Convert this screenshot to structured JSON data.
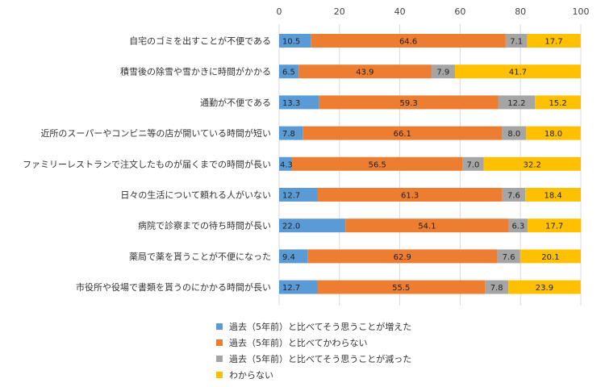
{
  "chart_data": {
    "type": "bar",
    "orientation": "horizontal",
    "stacked": true,
    "categories": [
      "自宅のゴミを出すことが不便である",
      "積雪後の除雪や雪かきに時間がかかる",
      "通勤が不便である",
      "近所のスーパーやコンビニ等の店が開いている時間が短い",
      "ファミリーレストランで注文したものが届くまでの時間が長い",
      "日々の生活について頼れる人がいない",
      "病院で診察までの待ち時間が長い",
      "薬局で薬を貰うことが不便になった",
      "市役所や役場で書類を貰うのにかかる時間が長い"
    ],
    "series": [
      {
        "name": "過去（5年前）と比べてそう思うことが増えた",
        "color": "#5B9BD5",
        "values": [
          10.5,
          6.5,
          13.3,
          7.8,
          4.3,
          12.7,
          22.0,
          9.4,
          12.7
        ],
        "labels": [
          "10.5",
          "6.5",
          "13.3",
          "7.8",
          "4.3",
          "12.7",
          "22.0",
          "9.4",
          "12.7"
        ]
      },
      {
        "name": "過去（5年前）と比べてかわらない",
        "color": "#ED7D31",
        "values": [
          64.6,
          43.9,
          59.3,
          66.1,
          56.5,
          61.3,
          54.1,
          62.9,
          55.5
        ],
        "labels": [
          "64.6",
          "43.9",
          "59.3",
          "66.1",
          "56.5",
          "61.3",
          "54.1",
          "62.9",
          "55.5"
        ]
      },
      {
        "name": "過去（5年前）と比べてそう思うことが減った",
        "color": "#A5A5A5",
        "values": [
          7.1,
          7.9,
          12.2,
          8.0,
          7.0,
          7.6,
          6.3,
          7.6,
          7.8
        ],
        "labels": [
          "7.1",
          "7.9",
          "12.2",
          "8.0",
          "7.0",
          "7.6",
          "6.3",
          "7.6",
          "7.8"
        ]
      },
      {
        "name": "わからない",
        "color": "#FFC000",
        "values": [
          17.7,
          41.7,
          15.2,
          18.0,
          32.2,
          18.4,
          17.7,
          20.1,
          23.9
        ],
        "labels": [
          "17.7",
          "41.7",
          "15.2",
          "18.0",
          "32.2",
          "18.4",
          "17.7",
          "20.1",
          "23.9"
        ]
      }
    ],
    "xlim": [
      0,
      100
    ],
    "xticks": [
      0,
      20,
      40,
      60,
      80,
      100
    ],
    "xtick_labels": [
      "0",
      "20",
      "40",
      "60",
      "80",
      "100"
    ],
    "grid": true,
    "legend_position": "bottom"
  }
}
